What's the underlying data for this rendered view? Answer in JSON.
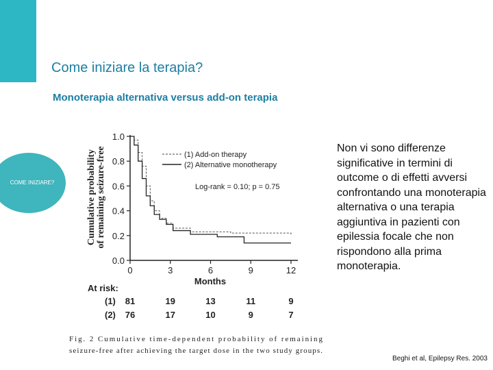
{
  "slide": {
    "title": "Come iniziare la terapia?",
    "subtitle": "Monoterapia alternativa versus add-on terapia",
    "section_label": "COME INIZIARE?",
    "body_text": "Non vi sono differenze significative in termini di outcome o di effetti avversi confrontando una monoterapia alternativa o una terapia aggiuntiva in pazienti con epilessia focale che non rispondono alla prima monoterapia.",
    "citation": "Beghi et al, Epilepsy Res. 2003",
    "colors": {
      "accent": "#2db6c4",
      "title": "#1d7ea3",
      "circle": "#3fb5bd"
    }
  },
  "chart_data": {
    "type": "line",
    "ylabel": "Cumulative probability of remaining seizure-free",
    "xlabel": "Months",
    "xlim": [
      0,
      12
    ],
    "ylim": [
      0,
      1.0
    ],
    "x_ticks": [
      "0",
      "3",
      "6",
      "9",
      "12"
    ],
    "y_ticks": [
      "0.0",
      "0.2",
      "0.4",
      "0.6",
      "0.8",
      "1.0"
    ],
    "legend": {
      "placement": "top-right",
      "entries": [
        "(1) Add-on therapy",
        "(2) Alternative monotherapy"
      ]
    },
    "annotation": "Log-rank = 0.10; p = 0.75",
    "series": [
      {
        "name": "(1) Add-on therapy",
        "style": "dashed",
        "points": [
          [
            0,
            1.0
          ],
          [
            0.3,
            0.97
          ],
          [
            0.6,
            0.87
          ],
          [
            0.9,
            0.76
          ],
          [
            1.2,
            0.6
          ],
          [
            1.5,
            0.48
          ],
          [
            1.8,
            0.4
          ],
          [
            2.2,
            0.34
          ],
          [
            2.7,
            0.3
          ],
          [
            3.2,
            0.26
          ],
          [
            4.5,
            0.23
          ],
          [
            7.5,
            0.22
          ],
          [
            12,
            0.21
          ]
        ]
      },
      {
        "name": "(2) Alternative monotherapy",
        "style": "solid",
        "points": [
          [
            0,
            1.0
          ],
          [
            0.3,
            0.93
          ],
          [
            0.6,
            0.8
          ],
          [
            0.9,
            0.66
          ],
          [
            1.2,
            0.52
          ],
          [
            1.5,
            0.44
          ],
          [
            1.8,
            0.37
          ],
          [
            2.2,
            0.33
          ],
          [
            2.7,
            0.29
          ],
          [
            3.2,
            0.24
          ],
          [
            4.5,
            0.21
          ],
          [
            6.5,
            0.19
          ],
          [
            8.5,
            0.14
          ],
          [
            12,
            0.14
          ]
        ]
      }
    ],
    "at_risk": {
      "label": "At risk:",
      "rows": [
        {
          "group": "(1)",
          "values": [
            "81",
            "19",
            "13",
            "11",
            "9"
          ]
        },
        {
          "group": "(2)",
          "values": [
            "76",
            "17",
            "10",
            "9",
            "7"
          ]
        }
      ]
    },
    "caption_line1": "Fig. 2 Cumulative time-dependent probability of remaining",
    "caption_line2": "seizure-free after achieving the target dose in the two study groups."
  }
}
